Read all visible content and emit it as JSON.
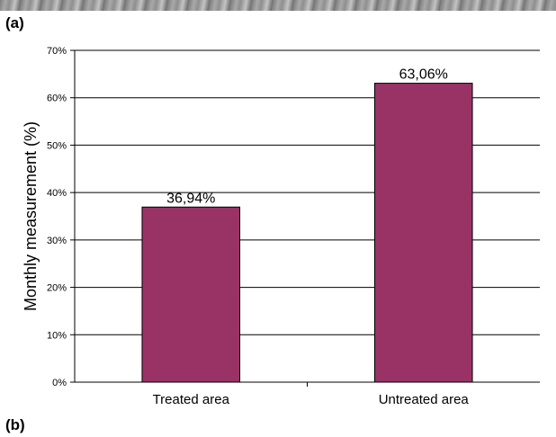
{
  "panel_labels": {
    "a": "(a)",
    "b": "(b)"
  },
  "chart_data": {
    "type": "bar",
    "categories": [
      "Treated area",
      "Untreated area"
    ],
    "values": [
      36.94,
      63.06
    ],
    "data_labels": [
      "36,94%",
      "63,06%"
    ],
    "title": "",
    "xlabel": "",
    "ylabel": "Monthly measurement (%)",
    "ylim": [
      0,
      70
    ],
    "yticks": [
      0,
      10,
      20,
      30,
      40,
      50,
      60,
      70
    ],
    "ytick_labels": [
      "0%",
      "10%",
      "20%",
      "30%",
      "40%",
      "50%",
      "60%",
      "70%"
    ],
    "grid": true,
    "bar_color": "#993366"
  }
}
